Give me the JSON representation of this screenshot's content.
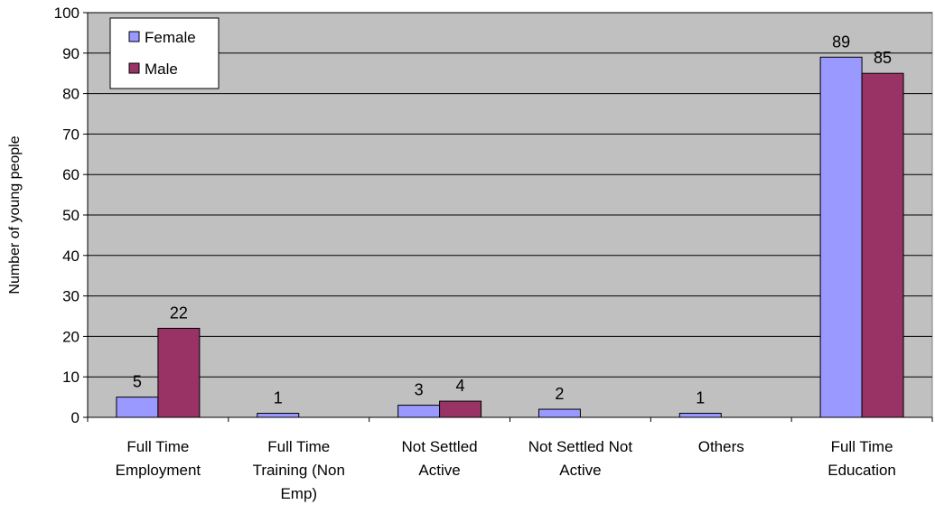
{
  "chart_data": {
    "type": "bar",
    "title": "",
    "xlabel": "",
    "ylabel": "Number of young people",
    "ylim": [
      0,
      100
    ],
    "yticks": [
      0,
      10,
      20,
      30,
      40,
      50,
      60,
      70,
      80,
      90,
      100
    ],
    "grid": true,
    "legend_position": "top-left",
    "categories": [
      [
        "Full Time",
        "Employment"
      ],
      [
        "Full Time",
        "Training (Non",
        "Emp)"
      ],
      [
        "Not Settled",
        "Active"
      ],
      [
        "Not Settled Not",
        "Active"
      ],
      [
        "Others"
      ],
      [
        "Full Time",
        "Education"
      ]
    ],
    "series": [
      {
        "name": "Female",
        "color": "#9999FF",
        "values": [
          5,
          1,
          3,
          2,
          1,
          89
        ]
      },
      {
        "name": "Male",
        "color": "#993366",
        "values": [
          22,
          0,
          4,
          0,
          0,
          85
        ]
      }
    ],
    "data_labels": [
      [
        "5",
        "1",
        "3",
        "2",
        "1",
        "89"
      ],
      [
        "22",
        "",
        "4",
        "",
        "",
        "85"
      ]
    ],
    "plot_background": "#C0C0C0"
  }
}
